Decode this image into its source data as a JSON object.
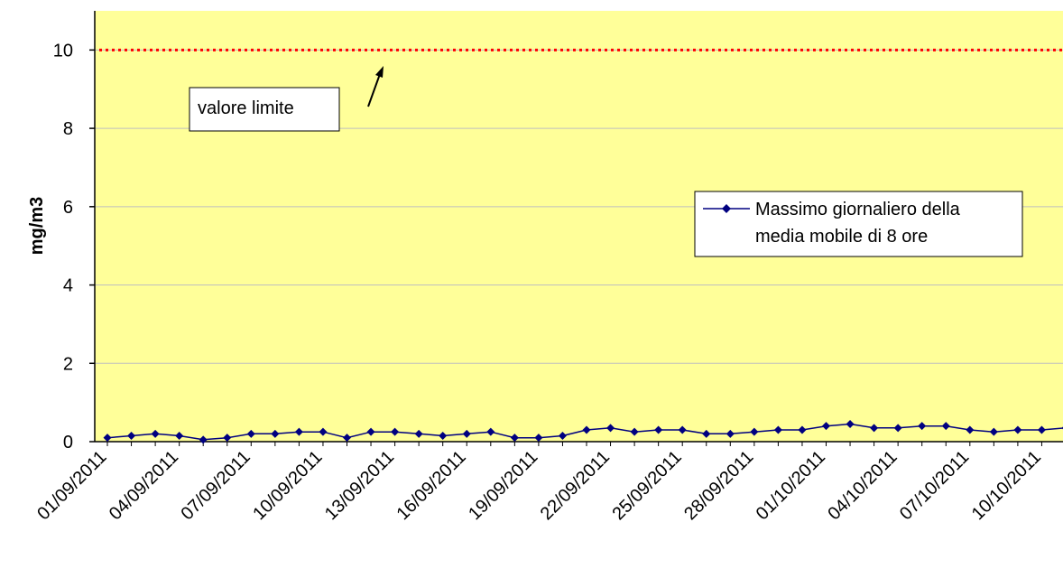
{
  "chart_data": {
    "type": "line",
    "title": "",
    "xlabel": "",
    "ylabel": "mg/m3",
    "ylim": [
      0,
      11
    ],
    "yticks": [
      0,
      2,
      4,
      6,
      8,
      10
    ],
    "grid": "horizontal",
    "background": "#FFFF99",
    "x": [
      "01/09/2011",
      "02/09/2011",
      "03/09/2011",
      "04/09/2011",
      "05/09/2011",
      "06/09/2011",
      "07/09/2011",
      "08/09/2011",
      "09/09/2011",
      "10/09/2011",
      "11/09/2011",
      "12/09/2011",
      "13/09/2011",
      "14/09/2011",
      "15/09/2011",
      "16/09/2011",
      "17/09/2011",
      "18/09/2011",
      "19/09/2011",
      "20/09/2011",
      "21/09/2011",
      "22/09/2011",
      "23/09/2011",
      "24/09/2011",
      "25/09/2011",
      "26/09/2011",
      "27/09/2011",
      "28/09/2011",
      "29/09/2011",
      "30/09/2011",
      "01/10/2011",
      "02/10/2011",
      "03/10/2011",
      "04/10/2011",
      "05/10/2011",
      "06/10/2011",
      "07/10/2011",
      "08/10/2011",
      "09/10/2011",
      "10/10/2011",
      "11/10/2011"
    ],
    "xtick_labels": [
      "01/09/2011",
      "04/09/2011",
      "07/09/2011",
      "10/09/2011",
      "13/09/2011",
      "16/09/2011",
      "19/09/2011",
      "22/09/2011",
      "25/09/2011",
      "28/09/2011",
      "01/10/2011",
      "04/10/2011",
      "07/10/2011",
      "10/10/2011"
    ],
    "series": [
      {
        "name": "Massimo giornaliero della media mobile di 8 ore",
        "color": "#000080",
        "marker": "diamond",
        "values": [
          0.1,
          0.15,
          0.2,
          0.15,
          0.05,
          0.1,
          0.2,
          0.2,
          0.25,
          0.25,
          0.1,
          0.25,
          0.25,
          0.2,
          0.15,
          0.2,
          0.25,
          0.1,
          0.1,
          0.15,
          0.3,
          0.35,
          0.25,
          0.3,
          0.3,
          0.2,
          0.2,
          0.25,
          0.3,
          0.3,
          0.4,
          0.45,
          0.35,
          0.35,
          0.4,
          0.4,
          0.3,
          0.25,
          0.3,
          0.3,
          0.35
        ]
      }
    ],
    "limit_line": {
      "value": 10,
      "color": "#FF0000",
      "style": "dotted"
    },
    "annotations": [
      {
        "text": "valore limite"
      }
    ],
    "legend_position": "right"
  }
}
